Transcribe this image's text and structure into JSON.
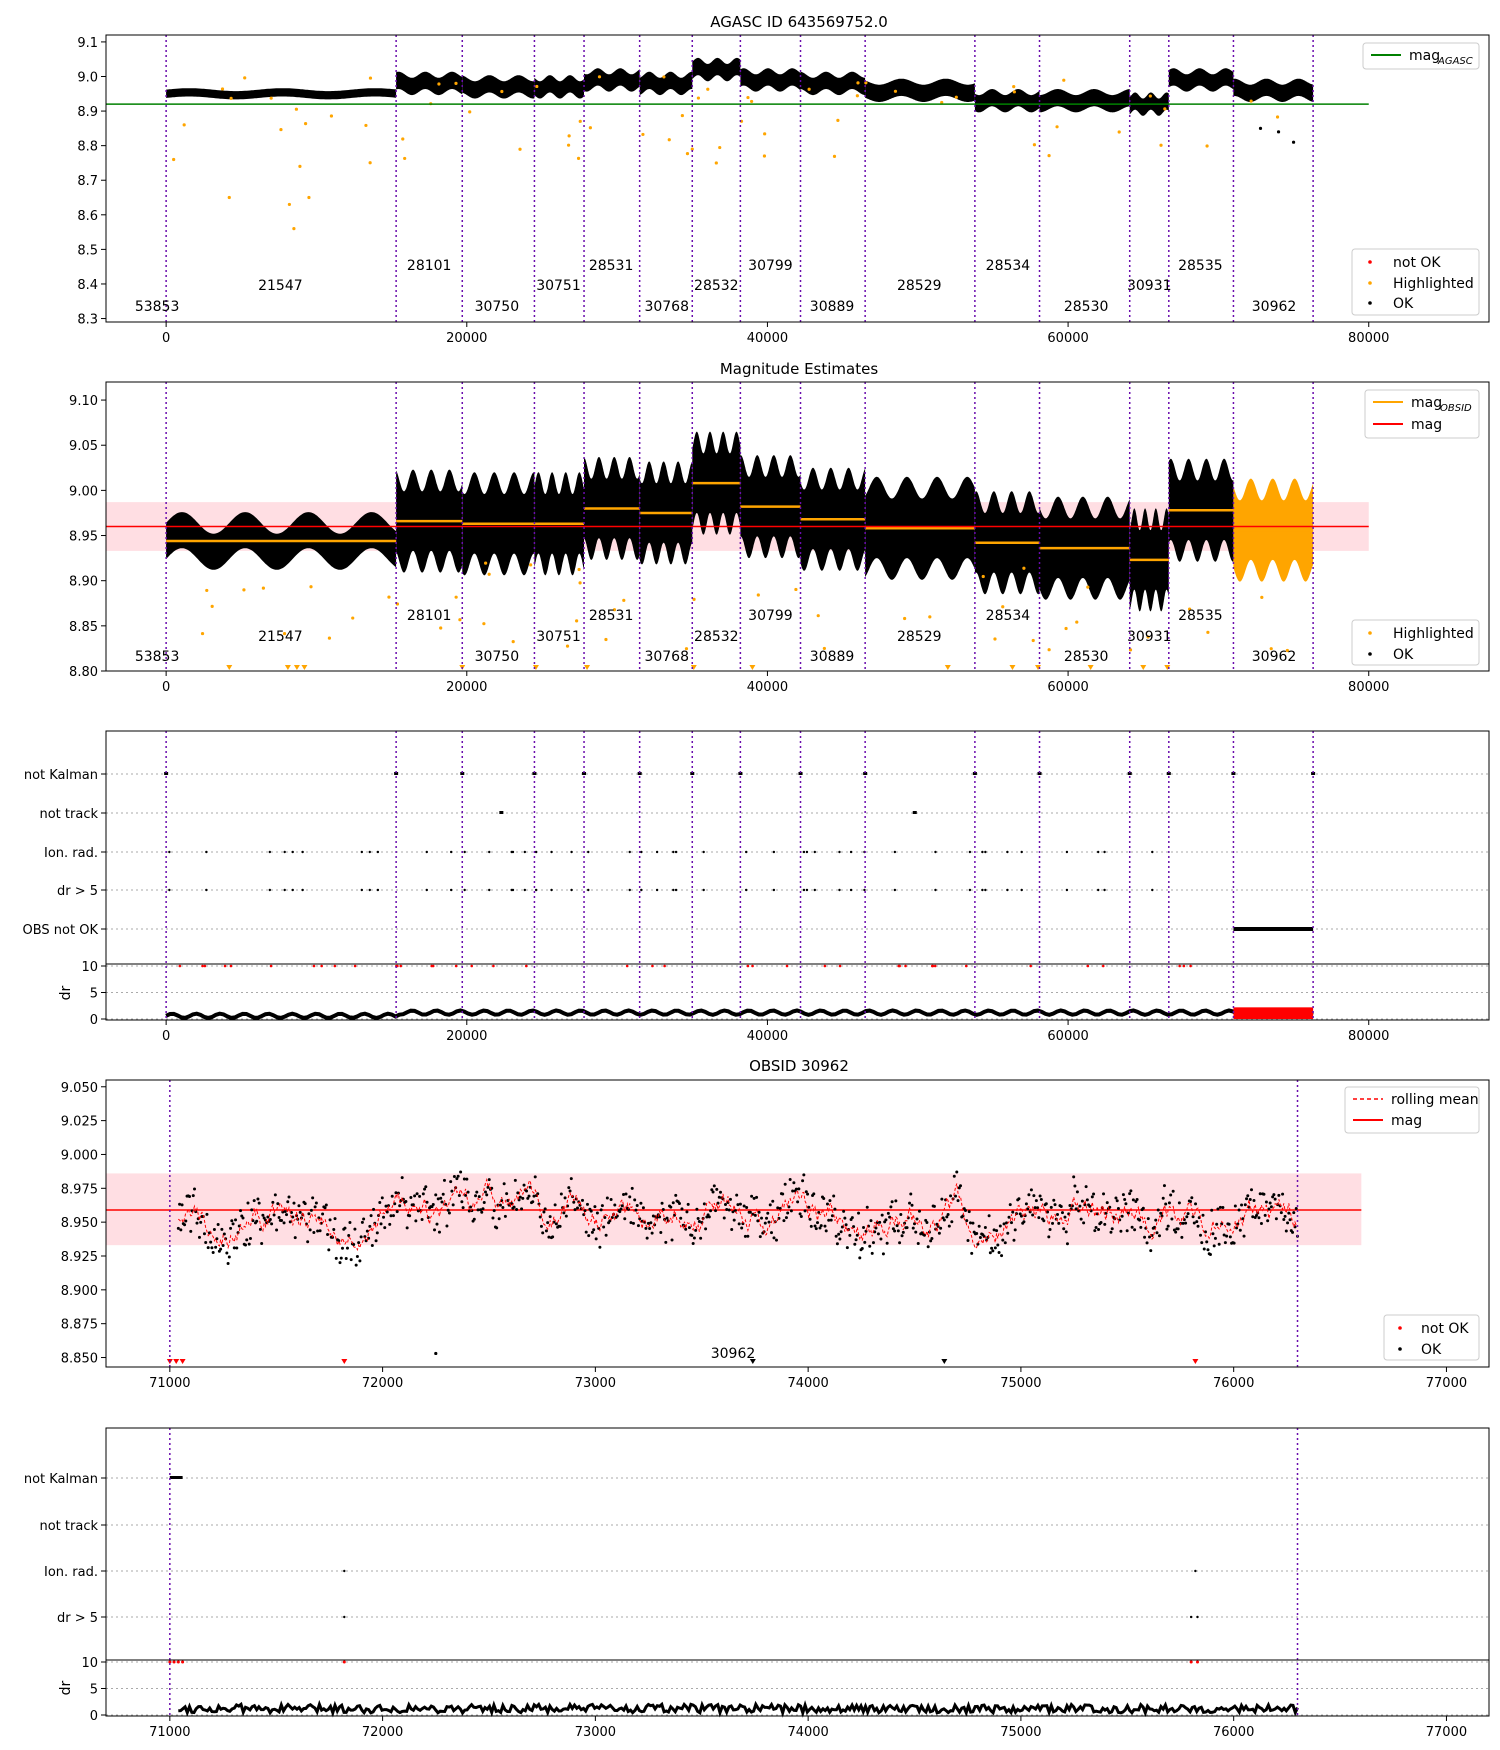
{
  "page_title": "AGASC ID 643569752.0",
  "chart_data": [
    {
      "id": "p1",
      "type": "scatter",
      "title": "AGASC ID 643569752.0",
      "xlim": [
        -4000,
        88000
      ],
      "ylim": [
        8.29,
        9.12
      ],
      "xticks": [
        0,
        20000,
        40000,
        60000,
        80000
      ],
      "yticks": [
        8.3,
        8.4,
        8.5,
        8.6,
        8.7,
        8.8,
        8.9,
        9.0,
        9.1
      ],
      "ytick_labels": [
        "8.3",
        "8.4",
        "8.5",
        "8.6",
        "8.7",
        "8.8",
        "8.9",
        "9.0",
        "9.1"
      ],
      "hline": {
        "label": "mag_AGASC",
        "y": 8.92,
        "x": [
          -4000,
          80000
        ],
        "color": "#008000"
      },
      "segments": [
        {
          "obsid": "53853",
          "x0": 0,
          "x1": 15300,
          "y": 8.95,
          "spread": 0.012
        },
        {
          "obsid": "28101",
          "x0": 15300,
          "x1": 19700,
          "y": 8.98,
          "spread": 0.025
        },
        {
          "obsid": "30750",
          "x0": 19700,
          "x1": 24500,
          "y": 8.97,
          "spread": 0.025
        },
        {
          "obsid": "30751",
          "x0": 24500,
          "x1": 27800,
          "y": 8.97,
          "spread": 0.025
        },
        {
          "obsid": "28531",
          "x0": 27800,
          "x1": 31500,
          "y": 8.99,
          "spread": 0.025
        },
        {
          "obsid": "30768",
          "x0": 31500,
          "x1": 35000,
          "y": 8.98,
          "spread": 0.025
        },
        {
          "obsid": "28532",
          "x0": 35000,
          "x1": 38200,
          "y": 9.02,
          "spread": 0.025
        },
        {
          "obsid": "30799",
          "x0": 38200,
          "x1": 42200,
          "y": 8.99,
          "spread": 0.025
        },
        {
          "obsid": "30889",
          "x0": 42200,
          "x1": 46500,
          "y": 8.98,
          "spread": 0.025
        },
        {
          "obsid": "28529",
          "x0": 46500,
          "x1": 53800,
          "y": 8.96,
          "spread": 0.025
        },
        {
          "obsid": "28534",
          "x0": 53800,
          "x1": 58100,
          "y": 8.93,
          "spread": 0.025
        },
        {
          "obsid": "28530",
          "x0": 58100,
          "x1": 64100,
          "y": 8.93,
          "spread": 0.025
        },
        {
          "obsid": "30931",
          "x0": 64100,
          "x1": 66700,
          "y": 8.92,
          "spread": 0.025
        },
        {
          "obsid": "28535",
          "x0": 66700,
          "x1": 71000,
          "y": 8.99,
          "spread": 0.025
        },
        {
          "obsid": "30962",
          "x0": 71000,
          "x1": 76300,
          "y": 8.96,
          "spread": 0.025
        }
      ],
      "vlines": [
        0,
        15300,
        19700,
        24500,
        27800,
        31500,
        35000,
        38200,
        42200,
        46500,
        53800,
        58100,
        64100,
        66700,
        71000,
        76300
      ],
      "obsid_labels": [
        {
          "text": "53853",
          "x": -600,
          "row": 3
        },
        {
          "text": "21547",
          "x": 7600,
          "row": 2
        },
        {
          "text": "28101",
          "x": 17500,
          "row": 1
        },
        {
          "text": "30750",
          "x": 22000,
          "row": 3
        },
        {
          "text": "30751",
          "x": 26100,
          "row": 2
        },
        {
          "text": "28531",
          "x": 29600,
          "row": 1
        },
        {
          "text": "30768",
          "x": 33300,
          "row": 3
        },
        {
          "text": "28532",
          "x": 36600,
          "row": 2
        },
        {
          "text": "30799",
          "x": 40200,
          "row": 1
        },
        {
          "text": "30889",
          "x": 44300,
          "row": 3
        },
        {
          "text": "28529",
          "x": 50100,
          "row": 2
        },
        {
          "text": "28534",
          "x": 56000,
          "row": 1
        },
        {
          "text": "28530",
          "x": 61200,
          "row": 3
        },
        {
          "text": "30931",
          "x": 65400,
          "row": 2
        },
        {
          "text": "28535",
          "x": 68800,
          "row": 1
        },
        {
          "text": "30962",
          "x": 73700,
          "row": 3
        }
      ],
      "legend_top": [
        {
          "label": "mag",
          "sub": "AGASC",
          "color": "#008000"
        }
      ],
      "legend_bottom": [
        {
          "label": "not OK",
          "color": "#ff0000"
        },
        {
          "label": "Highlighted",
          "color": "#ffa500"
        },
        {
          "label": "OK",
          "color": "#000000"
        }
      ]
    },
    {
      "id": "p2",
      "type": "scatter",
      "title": "Magnitude Estimates",
      "xlim": [
        -4000,
        88000
      ],
      "ylim": [
        8.8,
        9.12
      ],
      "xticks": [
        0,
        20000,
        40000,
        60000,
        80000
      ],
      "yticks": [
        8.8,
        8.85,
        8.9,
        8.95,
        9.0,
        9.05,
        9.1
      ],
      "ytick_labels": [
        "8.80",
        "8.85",
        "8.90",
        "8.95",
        "9.00",
        "9.05",
        "9.10"
      ],
      "mag": 8.96,
      "mag_band": [
        8.933,
        8.987
      ],
      "obsid_mags": [
        {
          "obsid": "53853",
          "x0": 0,
          "x1": 15300,
          "mag": 8.944
        },
        {
          "obsid": "28101",
          "x0": 15300,
          "x1": 19700,
          "mag": 8.966
        },
        {
          "obsid": "30750",
          "x0": 19700,
          "x1": 24500,
          "mag": 8.963
        },
        {
          "obsid": "30751",
          "x0": 24500,
          "x1": 27800,
          "mag": 8.963
        },
        {
          "obsid": "28531",
          "x0": 27800,
          "x1": 31500,
          "mag": 8.98
        },
        {
          "obsid": "30768",
          "x0": 31500,
          "x1": 35000,
          "mag": 8.975
        },
        {
          "obsid": "28532",
          "x0": 35000,
          "x1": 38200,
          "mag": 9.008
        },
        {
          "obsid": "30799",
          "x0": 38200,
          "x1": 42200,
          "mag": 8.982
        },
        {
          "obsid": "30889",
          "x0": 42200,
          "x1": 46500,
          "mag": 8.968
        },
        {
          "obsid": "28529",
          "x0": 46500,
          "x1": 53800,
          "mag": 8.958
        },
        {
          "obsid": "28534",
          "x0": 53800,
          "x1": 58100,
          "mag": 8.942
        },
        {
          "obsid": "28530",
          "x0": 58100,
          "x1": 64100,
          "mag": 8.936
        },
        {
          "obsid": "30931",
          "x0": 64100,
          "x1": 66700,
          "mag": 8.923
        },
        {
          "obsid": "28535",
          "x0": 66700,
          "x1": 71000,
          "mag": 8.978
        },
        {
          "obsid": "30962",
          "x0": 71000,
          "x1": 76300,
          "mag": 8.956
        }
      ],
      "legend_top": [
        {
          "label": "mag",
          "sub": "OBSID",
          "color": "#ffa500"
        },
        {
          "label": "mag",
          "sub": "",
          "color": "#ff0000"
        }
      ],
      "legend_bottom": [
        {
          "label": "Highlighted",
          "color": "#ffa500"
        },
        {
          "label": "OK",
          "color": "#000000"
        }
      ]
    },
    {
      "id": "p3",
      "type": "flags",
      "xlim": [
        -4000,
        88000
      ],
      "xticks": [
        0,
        20000,
        40000,
        60000,
        80000
      ],
      "flag_rows": [
        "not Kalman",
        "not track",
        "Ion. rad.",
        "dr > 5",
        "OBS not OK"
      ],
      "dr_yticks": [
        0,
        5,
        10
      ],
      "dr_label": "dr"
    },
    {
      "id": "p4",
      "type": "line",
      "title": "OBSID 30962",
      "xlim": [
        70700,
        77200
      ],
      "ylim": [
        8.843,
        9.055
      ],
      "xticks": [
        71000,
        72000,
        73000,
        74000,
        75000,
        76000,
        77000
      ],
      "yticks": [
        8.85,
        8.875,
        8.9,
        8.925,
        8.95,
        8.975,
        9.0,
        9.025,
        9.05
      ],
      "ytick_labels": [
        "8.850",
        "8.875",
        "8.900",
        "8.925",
        "8.950",
        "8.975",
        "9.000",
        "9.025",
        "9.050"
      ],
      "mag": 8.959,
      "mag_band": [
        8.933,
        8.986
      ],
      "vlines": [
        71000,
        76300
      ],
      "obsid_label": {
        "text": "30962",
        "x": 73650
      },
      "legend_top": [
        {
          "label": "rolling mean",
          "style": "dashed",
          "color": "#ff0000"
        },
        {
          "label": "mag",
          "style": "solid",
          "color": "#ff0000"
        }
      ],
      "legend_bottom": [
        {
          "label": "not OK",
          "color": "#ff0000"
        },
        {
          "label": "OK",
          "color": "#000000"
        }
      ]
    },
    {
      "id": "p5",
      "type": "flags",
      "xlim": [
        70700,
        77200
      ],
      "xticks": [
        71000,
        72000,
        73000,
        74000,
        75000,
        76000,
        77000
      ],
      "flag_rows": [
        "not Kalman",
        "not track",
        "Ion. rad.",
        "dr > 5"
      ],
      "dr_yticks": [
        0,
        5,
        10
      ],
      "dr_label": "dr"
    }
  ]
}
